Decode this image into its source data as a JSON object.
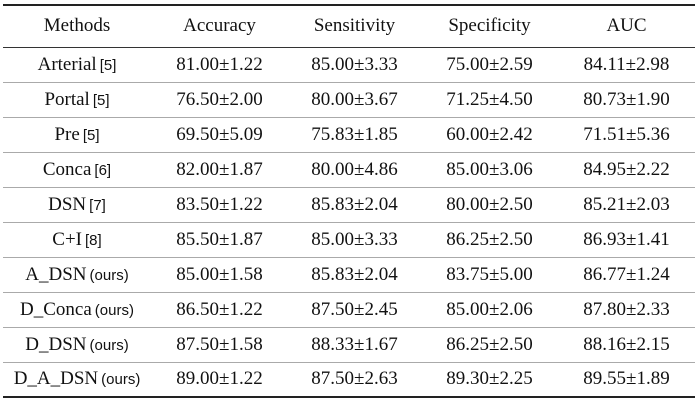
{
  "table": {
    "header": [
      "Methods",
      "Accuracy",
      "Sensitivity",
      "Specificity",
      "AUC"
    ],
    "rows": [
      {
        "method": "Arterial",
        "note": "[5]",
        "cells": [
          "81.00±1.22",
          "85.00±3.33",
          "75.00±2.59",
          "84.11±2.98"
        ]
      },
      {
        "method": "Portal",
        "note": "[5]",
        "cells": [
          "76.50±2.00",
          "80.00±3.67",
          "71.25±4.50",
          "80.73±1.90"
        ]
      },
      {
        "method": "Pre",
        "note": "[5]",
        "cells": [
          "69.50±5.09",
          "75.83±1.85",
          "60.00±2.42",
          "71.51±5.36"
        ]
      },
      {
        "method": "Conca",
        "note": "[6]",
        "cells": [
          "82.00±1.87",
          "80.00±4.86",
          "85.00±3.06",
          "84.95±2.22"
        ]
      },
      {
        "method": "DSN",
        "note": "[7]",
        "cells": [
          "83.50±1.22",
          "85.83±2.04",
          "80.00±2.50",
          "85.21±2.03"
        ]
      },
      {
        "method": "C+I",
        "note": "[8]",
        "cells": [
          "85.50±1.87",
          "85.00±3.33",
          "86.25±2.50",
          "86.93±1.41"
        ]
      },
      {
        "method": "A_DSN",
        "note": "(ours)",
        "cells": [
          "85.00±1.58",
          "85.83±2.04",
          "83.75±5.00",
          "86.77±1.24"
        ]
      },
      {
        "method": "D_Conca",
        "note": "(ours)",
        "cells": [
          "86.50±1.22",
          "87.50±2.45",
          "85.00±2.06",
          "87.80±2.33"
        ]
      },
      {
        "method": "D_DSN",
        "note": "(ours)",
        "cells": [
          "87.50±1.58",
          "88.33±1.67",
          "86.25±2.50",
          "88.16±2.15"
        ]
      },
      {
        "method": "D_A_DSN",
        "note": "(ours)",
        "cells": [
          "89.00±1.22",
          "87.50±2.63",
          "89.30±2.25",
          "89.55±1.89"
        ]
      }
    ]
  }
}
